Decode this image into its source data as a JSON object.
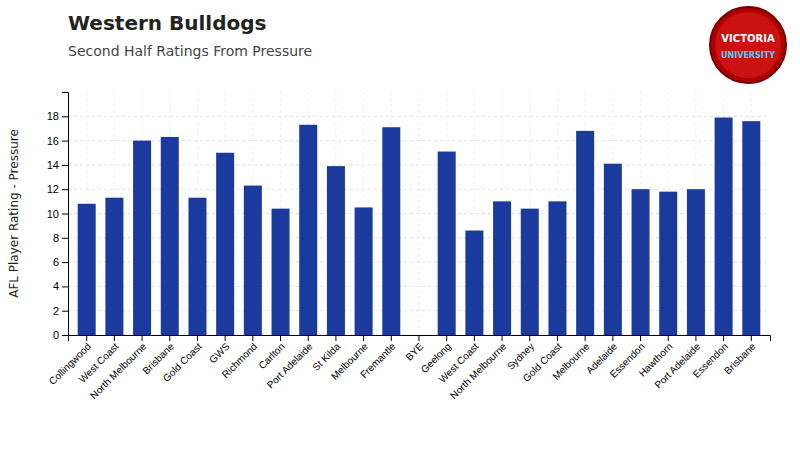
{
  "chart_data": {
    "type": "bar",
    "title": "Western Bulldogs",
    "subtitle": "Second Half Ratings From Pressure",
    "ylabel": "AFL Player Rating - Pressure",
    "annotations": [
      "VICTORIA",
      "UNIVERSITY"
    ],
    "categories": [
      "Collingwood",
      "West Coast",
      "North Melbourne",
      "Brisbane",
      "Gold Coast",
      "GWS",
      "Richmond",
      "Carlton",
      "Port Adelaide",
      "St Kilda",
      "Melbourne",
      "Fremantle",
      "BYE",
      "Geelong",
      "West Coast",
      "North Melbourne",
      "Sydney",
      "Gold Coast",
      "Melbourne",
      "Adelaide",
      "Essendon",
      "Hawthorn",
      "Port Adelaide",
      "Essendon",
      "Brisbane"
    ],
    "values": [
      10.8,
      11.3,
      16.0,
      16.3,
      11.3,
      15.0,
      12.3,
      10.4,
      17.3,
      13.9,
      10.5,
      17.1,
      0.0,
      15.1,
      8.6,
      11.0,
      10.4,
      11.0,
      16.8,
      14.1,
      12.0,
      11.8,
      12.0,
      17.9,
      17.6
    ],
    "color": "#1a3a9e",
    "ylim": [
      0,
      20
    ],
    "yticks": [
      0,
      2,
      4,
      6,
      8,
      10,
      12,
      14,
      16,
      18
    ],
    "grid": true
  }
}
